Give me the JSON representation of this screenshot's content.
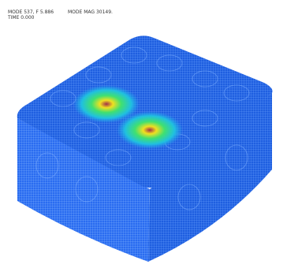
{
  "header": {
    "mode": "MODE 537, F 5.886",
    "magnitude": "MODE MAG 30149.",
    "time": "TIME 0.000"
  }
}
